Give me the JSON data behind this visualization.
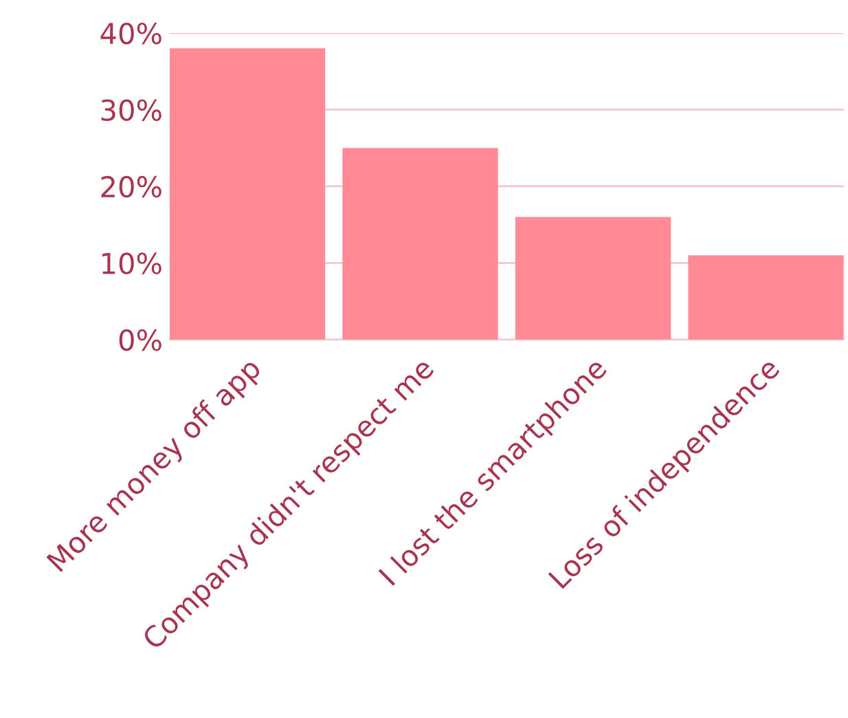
{
  "chart_data": {
    "type": "bar",
    "categories": [
      "More money off app",
      "Company didn't respect me",
      "I lost the smartphone",
      "Loss of independence"
    ],
    "values": [
      38,
      25,
      16,
      11
    ],
    "color": "#ff8a95",
    "ylim": [
      0,
      40
    ],
    "yticks": [
      {
        "value": 0,
        "label": "0%"
      },
      {
        "value": 10,
        "label": "10%"
      },
      {
        "value": 20,
        "label": "20%"
      },
      {
        "value": 30,
        "label": "30%"
      },
      {
        "value": 40,
        "label": "40%"
      }
    ],
    "grid": "y"
  }
}
